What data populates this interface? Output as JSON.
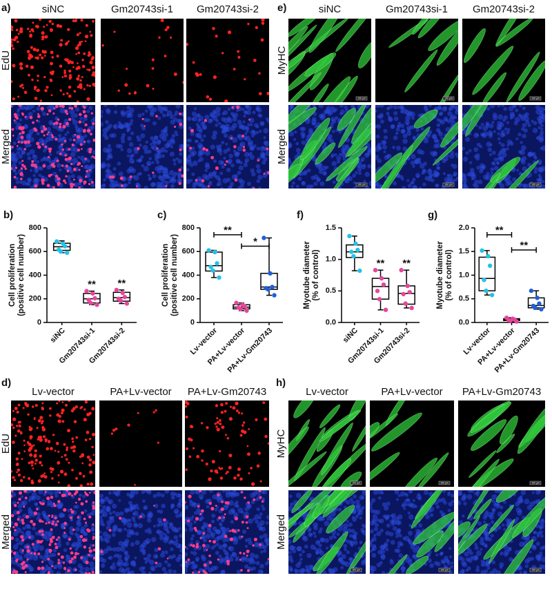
{
  "scale_bar": "100 μm",
  "panels": {
    "a": {
      "label": "a)",
      "columns": [
        "siNC",
        "Gm20743si-1",
        "Gm20743si-2"
      ],
      "rows": [
        "EdU",
        "Merged"
      ]
    },
    "e": {
      "label": "e)",
      "columns": [
        "siNC",
        "Gm20743si-1",
        "Gm20743si-2"
      ],
      "rows": [
        "MyHC",
        "Merged"
      ]
    },
    "d": {
      "label": "d)",
      "columns": [
        "Lv-vector",
        "PA+Lv-vector",
        "PA+Lv-Gm20743"
      ],
      "rows": [
        "EdU",
        "Merged"
      ]
    },
    "h": {
      "label": "h)",
      "columns": [
        "Lv-vector",
        "PA+Lv-vector",
        "PA+Lv-Gm20743"
      ],
      "rows": [
        "MyHC",
        "Merged"
      ]
    }
  },
  "chart_data": [
    {
      "type": "box",
      "label": "b)",
      "ylabel": [
        "Cell proliferation",
        "(positive cell number)"
      ],
      "categories": [
        "siNC",
        "Gm20743si-1",
        "Gm20743si-2"
      ],
      "ylim": [
        0,
        800
      ],
      "yticks": [
        0,
        200,
        400,
        600,
        800
      ],
      "annotations": [
        null,
        "**",
        "**"
      ],
      "boxes": [
        {
          "color": "#22c3e6",
          "min": 590,
          "q1": 610,
          "median": 640,
          "q3": 670,
          "max": 690,
          "points": [
            685,
            668,
            645,
            615,
            600,
            590
          ]
        },
        {
          "color": "#e8459c",
          "min": 150,
          "q1": 165,
          "median": 200,
          "q3": 245,
          "max": 265,
          "points": [
            265,
            245,
            205,
            190,
            165,
            150
          ]
        },
        {
          "color": "#e8459c",
          "min": 160,
          "q1": 180,
          "median": 210,
          "q3": 255,
          "max": 275,
          "points": [
            275,
            250,
            215,
            200,
            185,
            160
          ]
        }
      ]
    },
    {
      "type": "box",
      "label": "c)",
      "ylabel": [
        "Cell proliferation",
        "(positive cell number)"
      ],
      "categories": [
        "Lv-vector",
        "PA+Lv-vector",
        "PA+Lv-Gm20743"
      ],
      "ylim": [
        0,
        800
      ],
      "yticks": [
        0,
        200,
        400,
        600,
        800
      ],
      "brackets": [
        {
          "from": 0,
          "to": 1,
          "text": "**"
        },
        {
          "from": 1,
          "to": 2,
          "text": "*"
        }
      ],
      "boxes": [
        {
          "color": "#22c3e6",
          "min": 380,
          "q1": 435,
          "median": 480,
          "q3": 595,
          "max": 610,
          "points": [
            610,
            595,
            500,
            470,
            440,
            380
          ]
        },
        {
          "color": "#e8459c",
          "min": 100,
          "q1": 115,
          "median": 130,
          "q3": 150,
          "max": 165,
          "points": [
            165,
            150,
            135,
            125,
            115,
            100
          ]
        },
        {
          "color": "#1f5fd6",
          "min": 230,
          "q1": 280,
          "median": 300,
          "q3": 415,
          "max": 715,
          "points": [
            715,
            415,
            300,
            290,
            280,
            230
          ]
        }
      ]
    },
    {
      "type": "box",
      "label": "f)",
      "ylabel": [
        "Myotube diameter",
        "(% of control)"
      ],
      "categories": [
        "siNC",
        "Gm20743si-1",
        "Gm20743si-2"
      ],
      "ylim": [
        0,
        1.5
      ],
      "yticks": [
        {
          "value": 0,
          "label": "0.0"
        },
        0.5,
        {
          "value": 1,
          "label": "1.0"
        },
        1.5
      ],
      "annotations": [
        null,
        "**",
        "**"
      ],
      "boxes": [
        {
          "color": "#22c3e6",
          "min": 0.82,
          "q1": 1.03,
          "median": 1.12,
          "q3": 1.23,
          "max": 1.37,
          "points": [
            1.37,
            1.25,
            1.15,
            1.12,
            1.05,
            0.82
          ]
        },
        {
          "color": "#e8459c",
          "min": 0.2,
          "q1": 0.37,
          "median": 0.57,
          "q3": 0.7,
          "max": 0.83,
          "points": [
            0.83,
            0.7,
            0.6,
            0.5,
            0.37,
            0.2
          ]
        },
        {
          "color": "#e8459c",
          "min": 0.23,
          "q1": 0.29,
          "median": 0.46,
          "q3": 0.58,
          "max": 0.83,
          "points": [
            0.83,
            0.58,
            0.48,
            0.45,
            0.3,
            0.23
          ]
        }
      ]
    },
    {
      "type": "box",
      "label": "g)",
      "ylabel": [
        "Myotube diameter",
        "(% of control)"
      ],
      "categories": [
        "Lv-vector",
        "PA+Lv-vector",
        "PA+Lv-Gm20743"
      ],
      "ylim": [
        0,
        2
      ],
      "yticks": [
        {
          "value": 0,
          "label": "0.0"
        },
        0.5,
        {
          "value": 1,
          "label": "1.0"
        },
        1.5,
        {
          "value": 2,
          "label": "2.0"
        }
      ],
      "brackets": [
        {
          "from": 0,
          "to": 1,
          "text": "**"
        },
        {
          "from": 1,
          "to": 2,
          "text": "**"
        }
      ],
      "boxes": [
        {
          "color": "#22c3e6",
          "min": 0.58,
          "q1": 0.67,
          "median": 0.93,
          "q3": 1.38,
          "max": 1.52,
          "points": [
            1.52,
            1.4,
            1.2,
            0.9,
            0.67,
            0.58
          ]
        },
        {
          "color": "#e8459c",
          "min": 0.02,
          "q1": 0.04,
          "median": 0.06,
          "q3": 0.08,
          "max": 0.1,
          "points": [
            0.1,
            0.08,
            0.06,
            0.05,
            0.04,
            0.02
          ]
        },
        {
          "color": "#1f5fd6",
          "min": 0.28,
          "q1": 0.31,
          "median": 0.36,
          "q3": 0.52,
          "max": 0.67,
          "points": [
            0.67,
            0.52,
            0.4,
            0.35,
            0.31,
            0.28
          ]
        }
      ]
    }
  ]
}
